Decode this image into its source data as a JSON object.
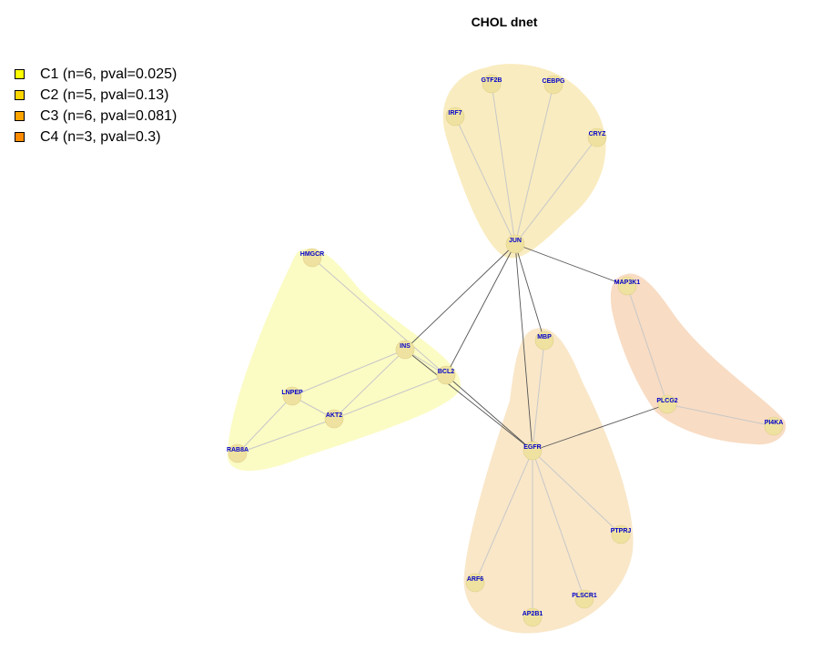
{
  "title": "CHOL dnet",
  "legend": [
    {
      "label": "C1 (n=6, pval=0.025)",
      "color": "#ffff00"
    },
    {
      "label": "C2 (n=5, pval=0.13)",
      "color": "#ffd700"
    },
    {
      "label": "C3 (n=6, pval=0.081)",
      "color": "#ffa500"
    },
    {
      "label": "C4 (n=3, pval=0.3)",
      "color": "#ff8c00"
    }
  ],
  "colors": {
    "c1_fill": "#fbfbc4",
    "c2_fill": "#f9ecc0",
    "c3_fill": "#f9e7c8",
    "c4_fill": "#f8dcc3",
    "node_fill": "#efe2a0",
    "node_label": "#0000cc",
    "edge_between": "#555555",
    "edge_within": "#c8c8c8"
  },
  "nodes": [
    {
      "id": "GTF2B",
      "cluster": "C2"
    },
    {
      "id": "CEBPG",
      "cluster": "C2"
    },
    {
      "id": "IRF7",
      "cluster": "C2"
    },
    {
      "id": "CRYZ",
      "cluster": "C2"
    },
    {
      "id": "JUN",
      "cluster": "C2"
    },
    {
      "id": "HMGCR",
      "cluster": "C1"
    },
    {
      "id": "INS",
      "cluster": "C1"
    },
    {
      "id": "BCL2",
      "cluster": "C1"
    },
    {
      "id": "LNPEP",
      "cluster": "C1"
    },
    {
      "id": "AKT2",
      "cluster": "C1"
    },
    {
      "id": "RAB8A",
      "cluster": "C1"
    },
    {
      "id": "MAP3K1",
      "cluster": "C4"
    },
    {
      "id": "PLCG2",
      "cluster": "C4"
    },
    {
      "id": "PI4KA",
      "cluster": "C4"
    },
    {
      "id": "MBP",
      "cluster": "C3"
    },
    {
      "id": "EGFR",
      "cluster": "C3"
    },
    {
      "id": "PTPRJ",
      "cluster": "C3"
    },
    {
      "id": "ARF6",
      "cluster": "C3"
    },
    {
      "id": "PLSCR1",
      "cluster": "C3"
    },
    {
      "id": "AP2B1",
      "cluster": "C3"
    }
  ],
  "edges": [
    [
      "JUN",
      "GTF2B"
    ],
    [
      "JUN",
      "CEBPG"
    ],
    [
      "JUN",
      "IRF7"
    ],
    [
      "JUN",
      "CRYZ"
    ],
    [
      "JUN",
      "MAP3K1"
    ],
    [
      "JUN",
      "INS"
    ],
    [
      "JUN",
      "BCL2"
    ],
    [
      "JUN",
      "EGFR"
    ],
    [
      "JUN",
      "MBP"
    ],
    [
      "HMGCR",
      "BCL2"
    ],
    [
      "INS",
      "LNPEP"
    ],
    [
      "INS",
      "AKT2"
    ],
    [
      "INS",
      "BCL2"
    ],
    [
      "INS",
      "EGFR"
    ],
    [
      "BCL2",
      "EGFR"
    ],
    [
      "BCL2",
      "AKT2"
    ],
    [
      "LNPEP",
      "AKT2"
    ],
    [
      "LNPEP",
      "RAB8A"
    ],
    [
      "AKT2",
      "RAB8A"
    ],
    [
      "MAP3K1",
      "PLCG2"
    ],
    [
      "PLCG2",
      "PI4KA"
    ],
    [
      "PLCG2",
      "EGFR"
    ],
    [
      "EGFR",
      "MBP"
    ],
    [
      "EGFR",
      "PTPRJ"
    ],
    [
      "EGFR",
      "ARF6"
    ],
    [
      "EGFR",
      "PLSCR1"
    ],
    [
      "EGFR",
      "AP2B1"
    ]
  ]
}
